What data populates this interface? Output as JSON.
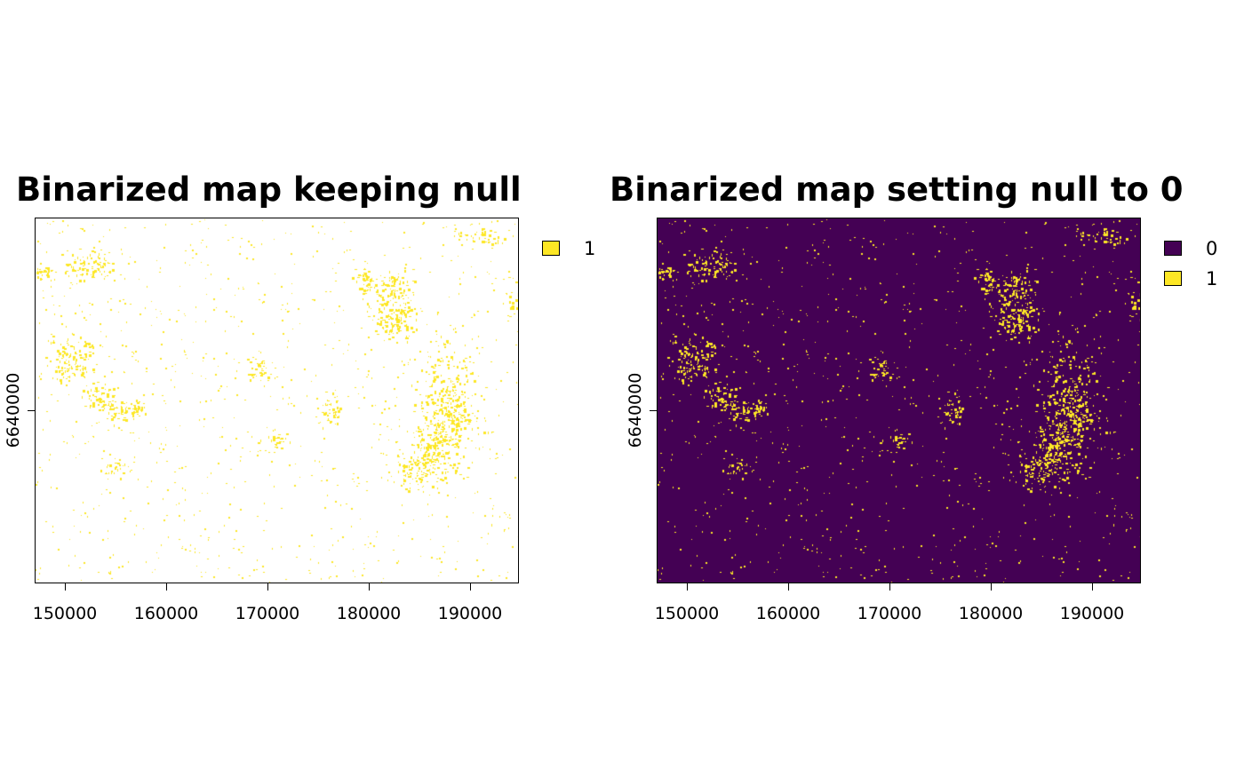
{
  "colors": {
    "presence": "#fde725",
    "absence": "#440154",
    "null": "#ffffff"
  },
  "x_axis": {
    "ticks": [
      "150000",
      "160000",
      "170000",
      "180000",
      "190000"
    ],
    "range": [
      147000,
      194800
    ]
  },
  "y_axis": {
    "ticks": [
      "6640000"
    ]
  },
  "maps": [
    {
      "title": "Binarized map keeping null",
      "legend": [
        {
          "label": "1",
          "color": "#fde725"
        }
      ]
    },
    {
      "title": "Binarized map setting null to 0",
      "legend": [
        {
          "label": "0",
          "color": "#440154"
        },
        {
          "label": "1",
          "color": "#fde725"
        }
      ]
    }
  ]
}
